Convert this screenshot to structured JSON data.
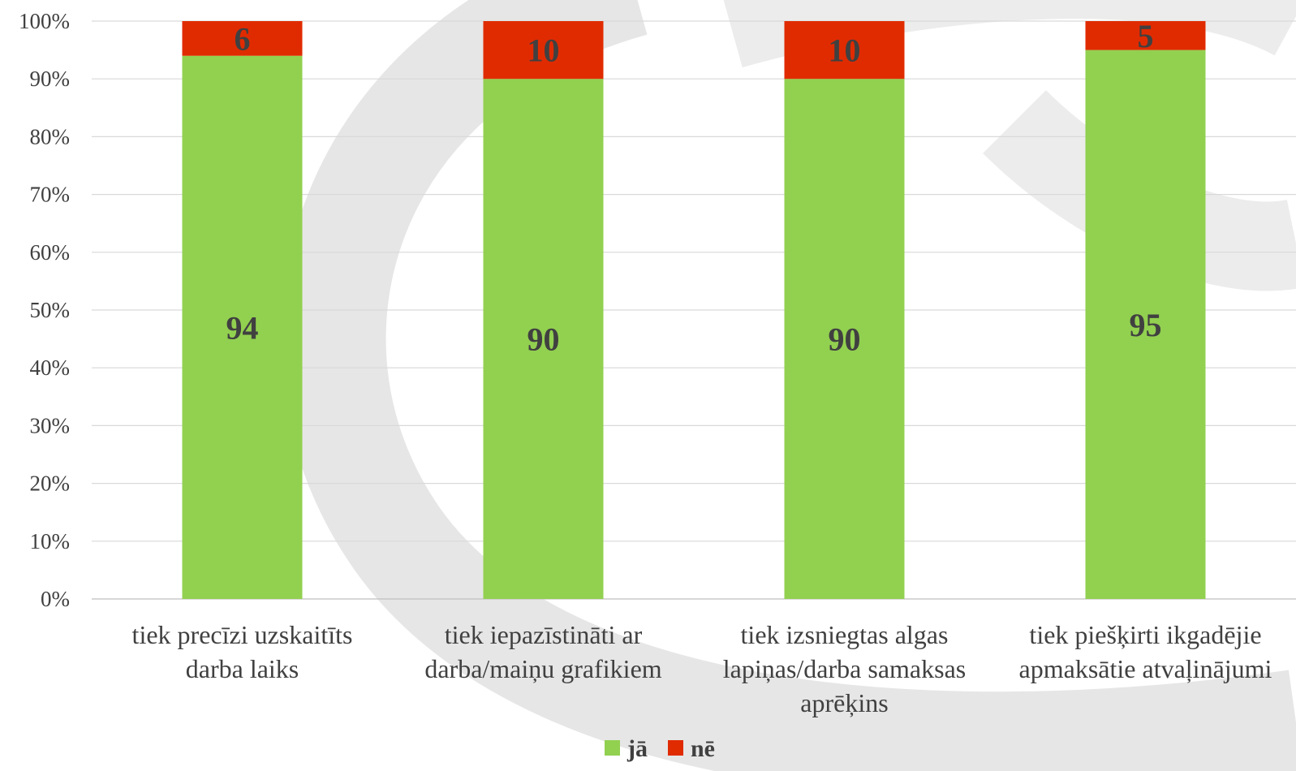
{
  "chart_data": {
    "type": "bar",
    "stacked": true,
    "percent_stacked": true,
    "categories": [
      [
        "tiek precīzi uzskaitīts",
        "darba laiks"
      ],
      [
        "tiek iepazīstināti ar",
        "darba/maiņu grafikiem"
      ],
      [
        "tiek izsniegtas algas",
        "lapiņas/darba samaksas",
        "aprēķins"
      ],
      [
        "tiek piešķirti ikgadējie",
        "apmaksātie atvaļinājumi"
      ]
    ],
    "series": [
      {
        "name": "jā",
        "values": [
          94,
          90,
          90,
          95
        ],
        "color": "#92D050"
      },
      {
        "name": "nē",
        "values": [
          6,
          10,
          10,
          5
        ],
        "color": "#E02B00"
      }
    ],
    "ylim": [
      0,
      100
    ],
    "yticks": [
      "0%",
      "10%",
      "20%",
      "30%",
      "40%",
      "50%",
      "60%",
      "70%",
      "80%",
      "90%",
      "100%"
    ],
    "grid": true,
    "legend_position": "bottom",
    "title": "",
    "xlabel": "",
    "ylabel": ""
  }
}
